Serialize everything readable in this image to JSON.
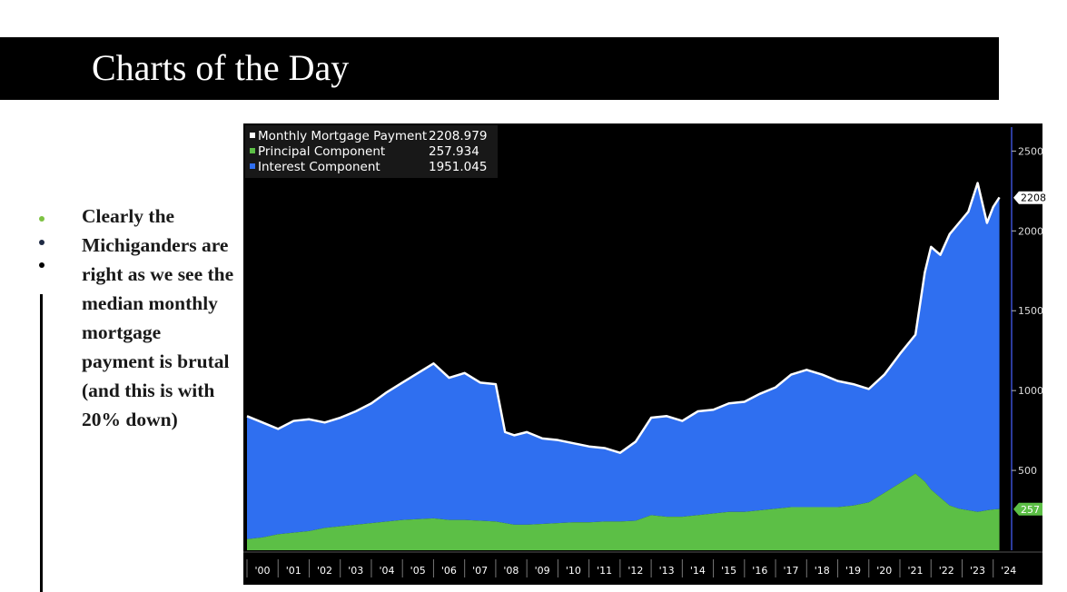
{
  "header": {
    "title": "Charts of the Day"
  },
  "commentary": {
    "bullet_colors": [
      "#7dc242",
      "#1f2a44",
      "#000000"
    ],
    "text": "Clearly the Michiganders are right as we see the median monthly mortgage payment is brutal (and this is with 20% down)"
  },
  "chart_data": {
    "type": "area",
    "title": "",
    "xlabel": "",
    "ylabel": "",
    "x_tick_labels": [
      "'00",
      "'01",
      "'02",
      "'03",
      "'04",
      "'05",
      "'06",
      "'07",
      "'08",
      "'09",
      "'10",
      "'11",
      "'12",
      "'13",
      "'14",
      "'15",
      "'16",
      "'17",
      "'18",
      "'19",
      "'20",
      "'21",
      "'22",
      "'23",
      "'24"
    ],
    "y_tick_labels": [
      "500",
      "1000",
      "1500",
      "2000",
      "2500"
    ],
    "ylim": [
      0,
      2650
    ],
    "xlim": [
      2000.0,
      2024.3
    ],
    "background": "#000000",
    "grid": false,
    "legend_position": "top-left",
    "legend": [
      {
        "name": "Monthly Mortgage Payment",
        "value": "2208.979",
        "color": "#ffffff"
      },
      {
        "name": "Principal Component",
        "value": "257.934",
        "color": "#5cbf46"
      },
      {
        "name": "Interest Component",
        "value": "1951.045",
        "color": "#2f6ff0"
      }
    ],
    "last_value_labels": {
      "total": "2208",
      "principal": "257"
    },
    "x": [
      2000.0,
      2000.5,
      2001.0,
      2001.5,
      2002.0,
      2002.5,
      2003.0,
      2003.5,
      2004.0,
      2004.5,
      2005.0,
      2005.5,
      2006.0,
      2006.5,
      2007.0,
      2007.5,
      2008.0,
      2008.3,
      2008.6,
      2009.0,
      2009.5,
      2010.0,
      2010.5,
      2011.0,
      2011.5,
      2012.0,
      2012.5,
      2013.0,
      2013.5,
      2014.0,
      2014.5,
      2015.0,
      2015.5,
      2016.0,
      2016.5,
      2017.0,
      2017.5,
      2018.0,
      2018.5,
      2019.0,
      2019.5,
      2020.0,
      2020.5,
      2021.0,
      2021.5,
      2021.8,
      2022.0,
      2022.3,
      2022.6,
      2022.9,
      2023.2,
      2023.5,
      2023.8,
      2024.0,
      2024.2
    ],
    "series": [
      {
        "name": "Monthly Mortgage Payment",
        "color": "#ffffff",
        "values": [
          840,
          800,
          760,
          810,
          820,
          800,
          830,
          870,
          920,
          990,
          1050,
          1110,
          1170,
          1080,
          1110,
          1050,
          1040,
          740,
          720,
          740,
          700,
          690,
          670,
          650,
          640,
          610,
          680,
          830,
          840,
          810,
          870,
          880,
          920,
          930,
          980,
          1020,
          1100,
          1130,
          1100,
          1060,
          1040,
          1010,
          1100,
          1230,
          1350,
          1740,
          1900,
          1850,
          1980,
          2050,
          2120,
          2300,
          2050,
          2150,
          2210
        ]
      },
      {
        "name": "Principal Component",
        "color": "#5cbf46",
        "values": [
          70,
          80,
          100,
          110,
          120,
          140,
          150,
          160,
          170,
          180,
          190,
          195,
          200,
          190,
          190,
          185,
          180,
          170,
          160,
          160,
          165,
          170,
          175,
          175,
          180,
          180,
          185,
          220,
          210,
          210,
          220,
          230,
          240,
          240,
          250,
          260,
          270,
          270,
          270,
          270,
          280,
          300,
          360,
          420,
          480,
          430,
          380,
          330,
          280,
          260,
          250,
          240,
          250,
          255,
          258
        ]
      },
      {
        "name": "Interest Component",
        "color": "#2f6ff0",
        "values": [
          770,
          720,
          660,
          700,
          700,
          660,
          680,
          710,
          750,
          810,
          860,
          915,
          970,
          890,
          920,
          865,
          860,
          570,
          560,
          580,
          535,
          520,
          495,
          475,
          460,
          430,
          495,
          610,
          630,
          600,
          650,
          650,
          680,
          690,
          730,
          760,
          830,
          860,
          830,
          790,
          760,
          710,
          740,
          810,
          870,
          1310,
          1520,
          1520,
          1700,
          1790,
          1870,
          2060,
          1800,
          1895,
          1952
        ]
      }
    ]
  }
}
